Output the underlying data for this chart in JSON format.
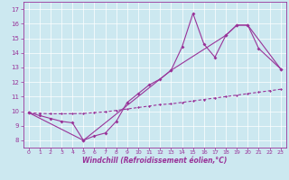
{
  "xlabel": "Windchill (Refroidissement éolien,°C)",
  "x_values": [
    0,
    1,
    2,
    3,
    4,
    5,
    6,
    7,
    8,
    9,
    10,
    11,
    12,
    13,
    14,
    15,
    16,
    17,
    18,
    19,
    20,
    21,
    22,
    23
  ],
  "series1": [
    9.9,
    9.7,
    9.5,
    9.3,
    9.2,
    8.0,
    8.3,
    8.5,
    9.3,
    10.6,
    11.2,
    11.8,
    12.2,
    12.8,
    14.4,
    16.7,
    14.6,
    13.7,
    15.2,
    15.9,
    15.9,
    14.3,
    null,
    12.9
  ],
  "series2_x": [
    0,
    5,
    13,
    18,
    19,
    20,
    23
  ],
  "series2_y": [
    9.9,
    8.0,
    12.8,
    15.2,
    15.9,
    15.9,
    12.9
  ],
  "series3_dashed": [
    9.9,
    9.85,
    9.82,
    9.82,
    9.83,
    9.84,
    9.9,
    9.95,
    10.05,
    10.15,
    10.25,
    10.35,
    10.45,
    10.5,
    10.6,
    10.7,
    10.8,
    10.9,
    11.0,
    11.1,
    11.2,
    11.3,
    11.4,
    11.5
  ],
  "line_color": "#993399",
  "bg_color": "#cce8f0",
  "ylim": [
    7.5,
    17.5
  ],
  "xlim": [
    -0.5,
    23.5
  ],
  "yticks": [
    8,
    9,
    10,
    11,
    12,
    13,
    14,
    15,
    16,
    17
  ],
  "xticks": [
    0,
    1,
    2,
    3,
    4,
    5,
    6,
    7,
    8,
    9,
    10,
    11,
    12,
    13,
    14,
    15,
    16,
    17,
    18,
    19,
    20,
    21,
    22,
    23
  ]
}
